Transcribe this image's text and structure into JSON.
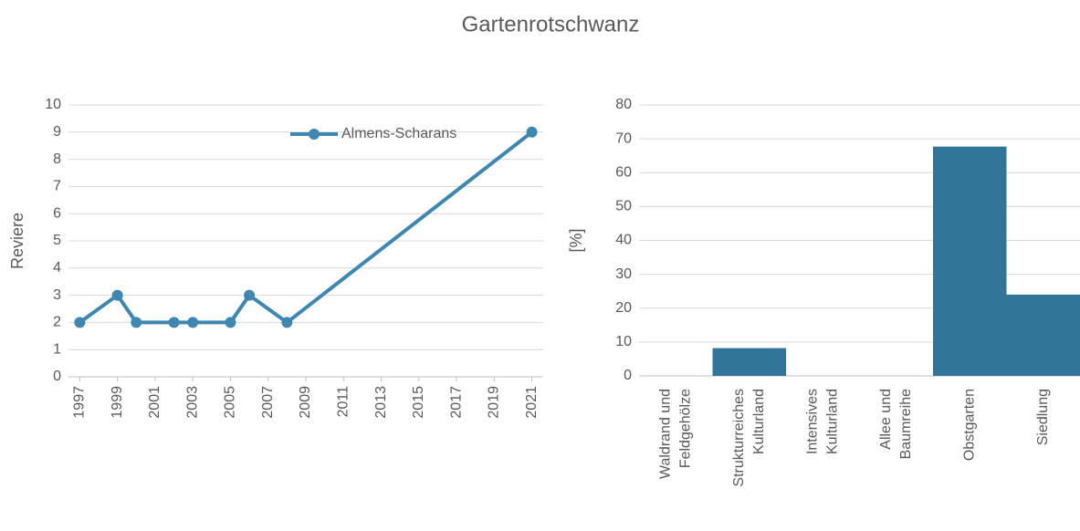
{
  "title": "Gartenrotschwanz",
  "chart_data": [
    {
      "type": "line",
      "y_label": "Reviere",
      "x": [
        1997,
        1999,
        2000,
        2002,
        2003,
        2005,
        2006,
        2008,
        2021
      ],
      "series": [
        {
          "name": "Almens-Scharans",
          "color": "#3f87b0",
          "values": [
            2,
            3,
            2,
            2,
            2,
            2,
            3,
            2,
            9
          ]
        }
      ],
      "xlim": [
        1996.4,
        2021.6
      ],
      "xticks": [
        1997,
        1999,
        2001,
        2003,
        2005,
        2007,
        2009,
        2011,
        2013,
        2015,
        2017,
        2019,
        2021
      ],
      "ylim": [
        0,
        10
      ],
      "yticks": [
        0,
        1,
        2,
        3,
        4,
        5,
        6,
        7,
        8,
        9,
        10
      ],
      "grid": true,
      "legend": "top-right"
    },
    {
      "type": "bar",
      "y_label": "[%]",
      "categories": [
        [
          "Waldrand und",
          "Feldgehölze"
        ],
        [
          "Strukturreiches",
          "Kulturland"
        ],
        [
          "Intensives",
          "Kulturland"
        ],
        [
          "Allee und",
          "Baumreihe"
        ],
        [
          "Obstgarten"
        ],
        [
          "Siedlung"
        ]
      ],
      "values": [
        0,
        8.2,
        0,
        0,
        67.7,
        24
      ],
      "color": "#31769a",
      "ylim": [
        0,
        80
      ],
      "yticks": [
        0,
        10,
        20,
        30,
        40,
        50,
        60,
        70,
        80
      ],
      "grid": true
    }
  ]
}
